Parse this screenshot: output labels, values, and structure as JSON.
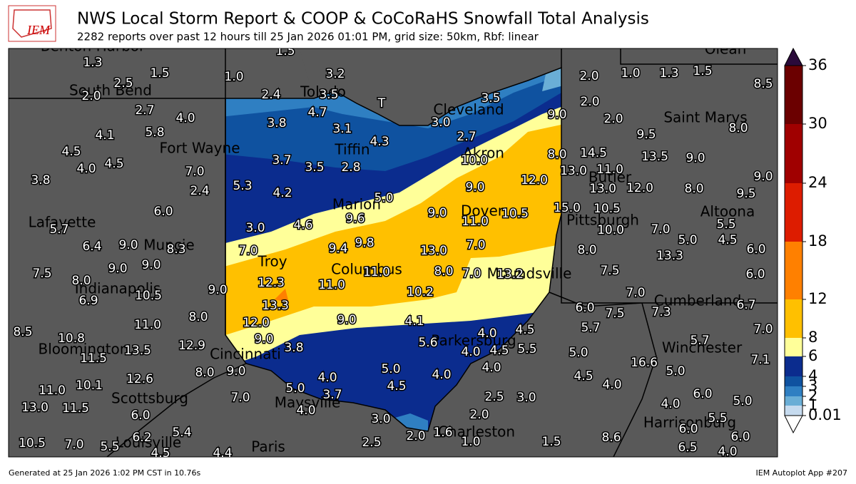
{
  "header": {
    "logo": "IEM",
    "title": "NWS Local Storm Report & COOP & CoCoRaHS Snowfall Total Analysis",
    "subtitle": "2282 reports over past 12 hours till 25 Jan 2026 01:01 PM, grid size: 50km, Rbf: linear"
  },
  "map": {
    "cities": [
      "Benton Harbor",
      "South Bend",
      "Toledo",
      "Cleveland",
      "Olean",
      "Saint Marys",
      "Fort Wayne",
      "Tiffin",
      "Akron",
      "Butler",
      "Lafayette",
      "Marion",
      "Dover",
      "Pittsburgh",
      "Altoona",
      "Muncie",
      "Troy",
      "Columbus",
      "Moundsville",
      "Indianapolis",
      "Cumberland",
      "Parkersburg",
      "Bloomington",
      "Winchester",
      "Cincinnati",
      "Scottsburg",
      "Maysville",
      "Harrisonburg",
      "Charleston",
      "Paris",
      "Louisville"
    ],
    "stations": [
      "1.5",
      "1.3",
      "2.5",
      "1.5",
      "1.0",
      "3.2",
      "2.0",
      "2.4",
      "3.5",
      "3.5",
      "2.0",
      "1.0",
      "1.3",
      "1.5",
      "8.5",
      "2.7",
      "4.7",
      "3.0",
      "9.0",
      "2.0",
      "2.0",
      "4.0",
      "3.8",
      "3.1",
      "2.7",
      "9.5",
      "8.0",
      "4.1",
      "5.8",
      "4.3",
      "13.5",
      "9.0",
      "4.5",
      "3.7",
      "10.0",
      "8.0",
      "14.5",
      "4.0",
      "4.5",
      "7.0",
      "3.5",
      "2.8",
      "13.0",
      "11.0",
      "12.0",
      "9.0",
      "3.8",
      "5.3",
      "2.4",
      "4.2",
      "9.0",
      "13.0",
      "12.0",
      "8.0",
      "9.5",
      "5.0",
      "6.0",
      "9.0",
      "9.6",
      "11.0",
      "10.5",
      "15.0",
      "10.5",
      "5.7",
      "3.0",
      "4.6",
      "10.0",
      "7.0",
      "5.5",
      "5.0",
      "4.5",
      "6.4",
      "9.0",
      "8.3",
      "9.4",
      "9.8",
      "13.0",
      "7.0",
      "7.0",
      "8.0",
      "13.3",
      "6.0",
      "9.0",
      "9.0",
      "7.5",
      "12.3",
      "11.0",
      "8.0",
      "7.0",
      "13.2",
      "7.5",
      "6.0",
      "8.0",
      "11.0",
      "10.2",
      "9.0",
      "10.5",
      "7.0",
      "6.9",
      "13.3",
      "6.0",
      "7.5",
      "7.3",
      "6.7",
      "8.0",
      "12.0",
      "9.0",
      "4.1",
      "11.0",
      "7.0",
      "8.5",
      "5.7",
      "4.0",
      "4.5",
      "9.0",
      "10.8",
      "12.9",
      "3.8",
      "5.6",
      "4.0",
      "4.5",
      "5.5",
      "5.0",
      "5.7",
      "13.5",
      "11.5",
      "7.1",
      "16.6",
      "8.0",
      "9.0",
      "4.0",
      "5.0",
      "4.0",
      "4.0",
      "5.0",
      "12.6",
      "4.5",
      "10.1",
      "4.0",
      "5.0",
      "4.5",
      "11.0",
      "3.7",
      "2.5",
      "3.0",
      "6.0",
      "5.0",
      "7.0",
      "13.0",
      "11.5",
      "4.0",
      "4.0",
      "6.0",
      "2.0",
      "3.0",
      "5.5",
      "6.0",
      "5.4",
      "2.0",
      "1.6",
      "6.0",
      "10.5",
      "7.0",
      "6.2",
      "2.5",
      "1.0",
      "1.5",
      "8.6",
      "5.5",
      "6.5",
      "4.5",
      "4.4",
      "4.0",
      "T"
    ]
  },
  "colorbar": {
    "labels": [
      "36",
      "30",
      "24",
      "18",
      "12",
      "8",
      "6",
      "4",
      "3",
      "2",
      "1",
      "0.01"
    ]
  },
  "footer": {
    "left": "Generated at 25 Jan 2026 1:02 PM CST in 10.76s",
    "right": "IEM Autoplot App #207"
  }
}
